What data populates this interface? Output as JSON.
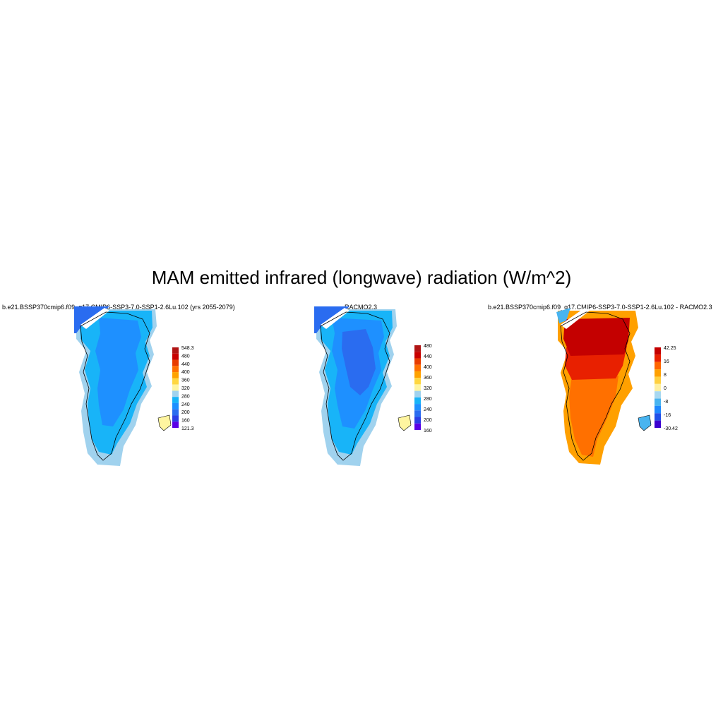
{
  "title": "MAM emitted infrared (longwave) radiation (W/m^2)",
  "colors": {
    "abs_scale": [
      "#5a00e6",
      "#2a3ee6",
      "#2a6cf0",
      "#1e90ff",
      "#18b4f8",
      "#a0d2ee",
      "#fff5a0",
      "#ffd740",
      "#ffa200",
      "#ff7000",
      "#e83c00",
      "#c80000",
      "#b01414"
    ],
    "diff_scale": [
      "#3c00d0",
      "#2050e8",
      "#1e88ff",
      "#48b4f0",
      "#a8d8f0",
      "#fff0a0",
      "#ffd040",
      "#ffa000",
      "#ff6600",
      "#e82000",
      "#c40000"
    ]
  },
  "chart_data": [
    {
      "type": "heatmap",
      "title": "b.e21.BSSP370cmip6.f09_g17.CMIP6-SSP3-7.0-SSP1-2.6Lu.102 (yrs 2055-2079)",
      "colorbar": {
        "labels": [
          "548.3",
          "480",
          "440",
          "400",
          "360",
          "320",
          "280",
          "240",
          "200",
          "160",
          "121.3"
        ],
        "min": 121.3,
        "max": 548.3
      }
    },
    {
      "type": "heatmap",
      "title": "RACMO2.3",
      "colorbar": {
        "labels": [
          "480",
          "440",
          "400",
          "360",
          "320",
          "280",
          "240",
          "200",
          "160"
        ]
      }
    },
    {
      "type": "heatmap",
      "title": "b.e21.BSSP370cmip6.f09_g17.CMIP6-SSP3-7.0-SSP1-2.6Lu.102 - RACMO2.3",
      "colorbar": {
        "labels": [
          "42.25",
          "16",
          "8",
          "0",
          "-8",
          "-16",
          "-30.42"
        ],
        "min": -30.42,
        "max": 42.25
      }
    }
  ]
}
